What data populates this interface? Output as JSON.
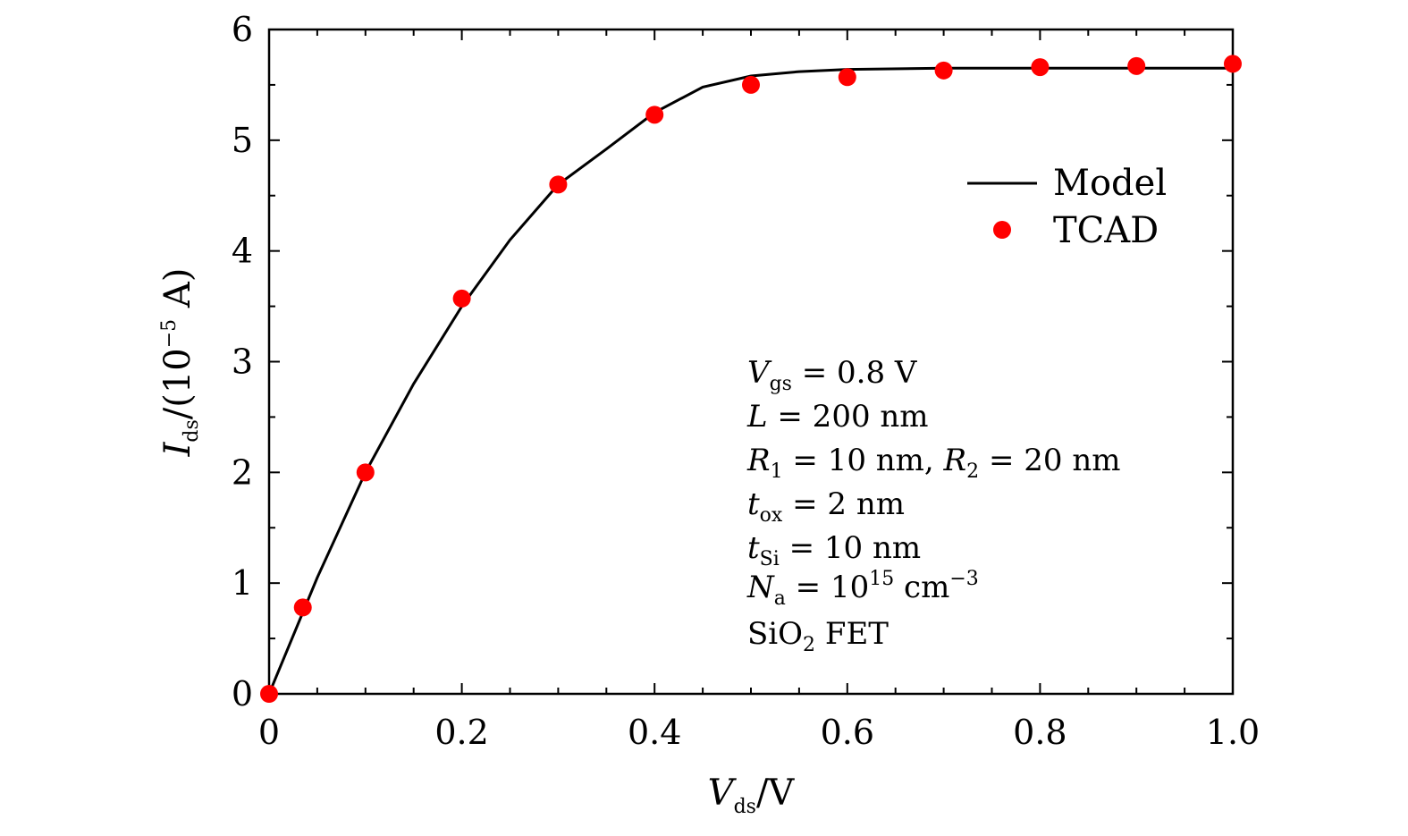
{
  "chart_data": {
    "type": "line",
    "xlabel": {
      "main": "V",
      "sub": "ds",
      "unit": "/V"
    },
    "ylabel": {
      "main": "I",
      "sub": "ds",
      "unit_prefix": "/(10",
      "unit_exp": "−5",
      "unit_suffix": " A)"
    },
    "xlim": [
      0,
      1.0
    ],
    "ylim": [
      0,
      6
    ],
    "xticks": [
      0,
      0.2,
      0.4,
      0.6,
      0.8,
      1.0
    ],
    "xtick_labels": [
      "0",
      "0.2",
      "0.4",
      "0.6",
      "0.8",
      "1.0"
    ],
    "yticks": [
      0,
      1,
      2,
      3,
      4,
      5,
      6
    ],
    "ytick_labels": [
      "0",
      "1",
      "2",
      "3",
      "4",
      "5",
      "6"
    ],
    "series": [
      {
        "name": "Model",
        "style": "line",
        "color": "#000000",
        "x": [
          0,
          0.05,
          0.1,
          0.15,
          0.2,
          0.25,
          0.3,
          0.35,
          0.4,
          0.45,
          0.5,
          0.55,
          0.6,
          0.7,
          0.8,
          0.9,
          1.0
        ],
        "y": [
          0,
          1.05,
          2.0,
          2.8,
          3.5,
          4.1,
          4.6,
          4.92,
          5.25,
          5.48,
          5.58,
          5.62,
          5.64,
          5.65,
          5.65,
          5.65,
          5.65
        ]
      },
      {
        "name": "TCAD",
        "style": "scatter",
        "color": "#ff0000",
        "x": [
          0,
          0.035,
          0.1,
          0.2,
          0.3,
          0.4,
          0.5,
          0.6,
          0.7,
          0.8,
          0.9,
          1.0
        ],
        "y": [
          0,
          0.78,
          2.0,
          3.57,
          4.6,
          5.23,
          5.5,
          5.57,
          5.63,
          5.66,
          5.67,
          5.69
        ]
      }
    ],
    "legend": {
      "position": "top-right",
      "entries": [
        "Model",
        "TCAD"
      ]
    },
    "annotation_lines": [
      {
        "var": "V",
        "sub": "gs",
        "rest": " = 0.8 V"
      },
      {
        "var": "L",
        "sub": "",
        "rest": " = 200 nm"
      },
      {
        "var": "R",
        "sub": "1",
        "rest": " = 10 nm, ",
        "var2": "R",
        "sub2": "2",
        "rest2": " = 20 nm"
      },
      {
        "var": "t",
        "sub": "ox",
        "rest": " = 2 nm"
      },
      {
        "var": "t",
        "sub": "Si",
        "rest": " = 10 nm"
      },
      {
        "var": "N",
        "sub": "a",
        "rest": " = 10",
        "sup": "15",
        "rest2": " cm",
        "sup2": "−3"
      },
      {
        "plain": "SiO",
        "sub": "2",
        "rest": " FET"
      }
    ]
  }
}
